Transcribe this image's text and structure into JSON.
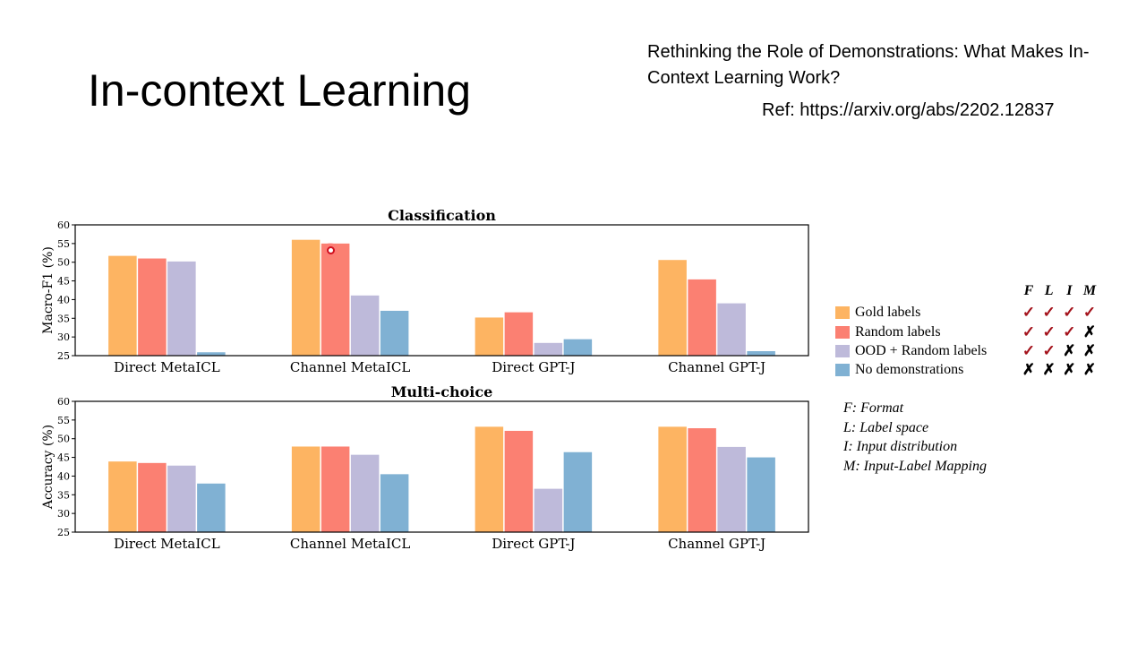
{
  "slide": {
    "title": "In-context Learning",
    "paper_title": "Rethinking the Role of Demonstrations: What Makes In-Context Learning Work?",
    "reference": "Ref: https://arxiv.org/abs/2202.12837"
  },
  "colors": {
    "gold": "#fdb462",
    "random": "#fb8072",
    "ood": "#bebada",
    "none": "#80b1d3",
    "check": "#a4121b"
  },
  "legend": {
    "headers": [
      "F",
      "L",
      "I",
      "M"
    ],
    "items": [
      {
        "label": "Gold labels",
        "color": "#fdb462",
        "marks": [
          "✓",
          "✓",
          "✓",
          "✓"
        ]
      },
      {
        "label": "Random labels",
        "color": "#fb8072",
        "marks": [
          "✓",
          "✓",
          "✓",
          "✗"
        ]
      },
      {
        "label": "OOD + Random labels",
        "color": "#bebada",
        "marks": [
          "✓",
          "✓",
          "✗",
          "✗"
        ]
      },
      {
        "label": "No demonstrations",
        "color": "#80b1d3",
        "marks": [
          "✗",
          "✗",
          "✗",
          "✗"
        ]
      }
    ],
    "definitions": [
      "F: Format",
      "L: Label space",
      "I: Input distribution",
      "M: Input-Label Mapping"
    ]
  },
  "chart_data": [
    {
      "type": "bar",
      "title": "Classification",
      "ylabel": "Macro-F1 (%)",
      "xlabel": "",
      "ylim": [
        25,
        60
      ],
      "yticks": [
        25,
        30,
        35,
        40,
        45,
        50,
        55,
        60
      ],
      "categories": [
        "Direct MetaICL",
        "Channel MetaICL",
        "Direct GPT-J",
        "Channel GPT-J"
      ],
      "series": [
        {
          "name": "Gold labels",
          "values": [
            51.7,
            56.0,
            35.2,
            50.6
          ]
        },
        {
          "name": "Random labels",
          "values": [
            51.0,
            55.0,
            36.6,
            45.4
          ]
        },
        {
          "name": "OOD + Random labels",
          "values": [
            50.2,
            41.1,
            28.4,
            39.0
          ]
        },
        {
          "name": "No demonstrations",
          "values": [
            25.9,
            37.0,
            29.4,
            26.2
          ]
        }
      ],
      "grid": false
    },
    {
      "type": "bar",
      "title": "Multi-choice",
      "ylabel": "Accuracy (%)",
      "xlabel": "",
      "ylim": [
        25,
        60
      ],
      "yticks": [
        25,
        30,
        35,
        40,
        45,
        50,
        55,
        60
      ],
      "categories": [
        "Direct MetaICL",
        "Channel MetaICL",
        "Direct GPT-J",
        "Channel GPT-J"
      ],
      "series": [
        {
          "name": "Gold labels",
          "values": [
            43.9,
            47.9,
            53.2,
            53.2
          ]
        },
        {
          "name": "Random labels",
          "values": [
            43.5,
            47.9,
            52.1,
            52.8
          ]
        },
        {
          "name": "OOD + Random labels",
          "values": [
            42.8,
            45.7,
            36.6,
            47.8
          ]
        },
        {
          "name": "No demonstrations",
          "values": [
            38.0,
            40.5,
            46.4,
            45.0
          ]
        }
      ],
      "grid": false
    }
  ]
}
